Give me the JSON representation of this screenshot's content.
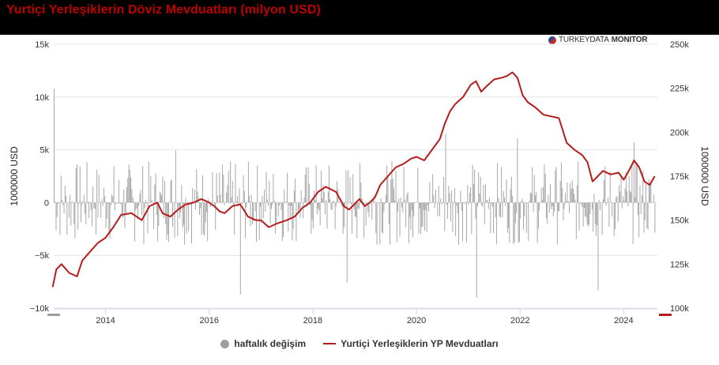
{
  "header": {
    "title": "Yurtiçi Yerleşiklerin Döviz Mevduatları (milyon USD)"
  },
  "watermark": {
    "brand_light": "TURKEYDATA",
    "brand_bold": "MONITOR",
    "icon": "globe-logo-icon"
  },
  "colors": {
    "header_bg": "#000000",
    "title": "#c00000",
    "bars": "#9e9e9e",
    "line": "#b71c1c"
  },
  "legend": {
    "bars_label": "haftalık değişim",
    "line_label": "Yurtiçi Yerleşiklerin YP Mevduatları"
  },
  "chart_data": {
    "type": "bar+line",
    "title": "Yurtiçi Yerleşiklerin Döviz Mevduatları (milyon USD)",
    "x_ticks": [
      "2014",
      "2016",
      "2018",
      "2020",
      "2022",
      "2024"
    ],
    "x_range": [
      2013.0,
      2024.65
    ],
    "y_left": {
      "label": "1000000 USD",
      "ticks": [
        "15k",
        "10k",
        "5k",
        "0",
        "−5k",
        "−10k"
      ],
      "range": [
        -10000,
        15000
      ]
    },
    "y_right": {
      "label": "1000000 USD",
      "ticks": [
        "250k",
        "225k",
        "200k",
        "175k",
        "150k",
        "125k",
        "100k"
      ],
      "range": [
        100000,
        250000
      ]
    },
    "line_series": {
      "name": "Yurtiçi Yerleşiklerin YP Mevduatları",
      "x": [
        2012.98,
        2013.05,
        2013.15,
        2013.3,
        2013.45,
        2013.55,
        2013.7,
        2013.85,
        2014.0,
        2014.15,
        2014.3,
        2014.5,
        2014.7,
        2014.85,
        2015.0,
        2015.1,
        2015.25,
        2015.4,
        2015.55,
        2015.7,
        2015.85,
        2016.0,
        2016.1,
        2016.2,
        2016.3,
        2016.45,
        2016.6,
        2016.75,
        2016.9,
        2017.0,
        2017.15,
        2017.3,
        2017.5,
        2017.65,
        2017.8,
        2017.95,
        2018.1,
        2018.25,
        2018.45,
        2018.6,
        2018.7,
        2018.8,
        2018.9,
        2019.0,
        2019.1,
        2019.2,
        2019.3,
        2019.45,
        2019.6,
        2019.75,
        2019.9,
        2020.0,
        2020.15,
        2020.3,
        2020.45,
        2020.55,
        2020.65,
        2020.75,
        2020.9,
        2021.05,
        2021.15,
        2021.25,
        2021.35,
        2021.5,
        2021.65,
        2021.75,
        2021.85,
        2021.95,
        2022.05,
        2022.15,
        2022.3,
        2022.45,
        2022.6,
        2022.75,
        2022.9,
        2023.05,
        2023.2,
        2023.3,
        2023.4,
        2023.5,
        2023.6,
        2023.75,
        2023.9,
        2024.0,
        2024.1,
        2024.2,
        2024.3,
        2024.4,
        2024.5,
        2024.6
      ],
      "values": [
        112,
        122,
        125,
        120,
        118,
        127,
        132,
        137,
        140,
        146,
        153,
        154,
        150,
        158,
        160,
        154,
        152,
        156,
        159,
        160,
        162,
        160,
        158,
        155,
        154,
        158,
        159,
        152,
        150,
        150,
        146,
        148,
        150,
        152,
        157,
        160,
        166,
        169,
        166,
        158,
        156,
        159,
        162,
        158,
        160,
        163,
        170,
        175,
        180,
        182,
        185,
        186,
        184,
        190,
        196,
        205,
        212,
        216,
        220,
        227,
        229,
        223,
        226,
        230,
        231,
        232,
        234,
        231,
        221,
        217,
        214,
        210,
        209,
        208,
        194,
        190,
        187,
        183,
        172,
        175,
        178,
        176,
        177,
        173,
        178,
        184,
        180,
        172,
        170,
        175
      ]
    },
    "bar_series": {
      "name": "haftalık değişim",
      "notable_values": [
        {
          "x": 2013.0,
          "value": 10800
        },
        {
          "x": 2015.35,
          "value": 4950
        },
        {
          "x": 2016.6,
          "value": -8700
        },
        {
          "x": 2018.65,
          "value": -7600
        },
        {
          "x": 2020.55,
          "value": 6500
        },
        {
          "x": 2021.15,
          "value": -9000
        },
        {
          "x": 2021.95,
          "value": 6100
        },
        {
          "x": 2023.5,
          "value": -8300
        },
        {
          "x": 2024.2,
          "value": 5700
        }
      ]
    }
  }
}
